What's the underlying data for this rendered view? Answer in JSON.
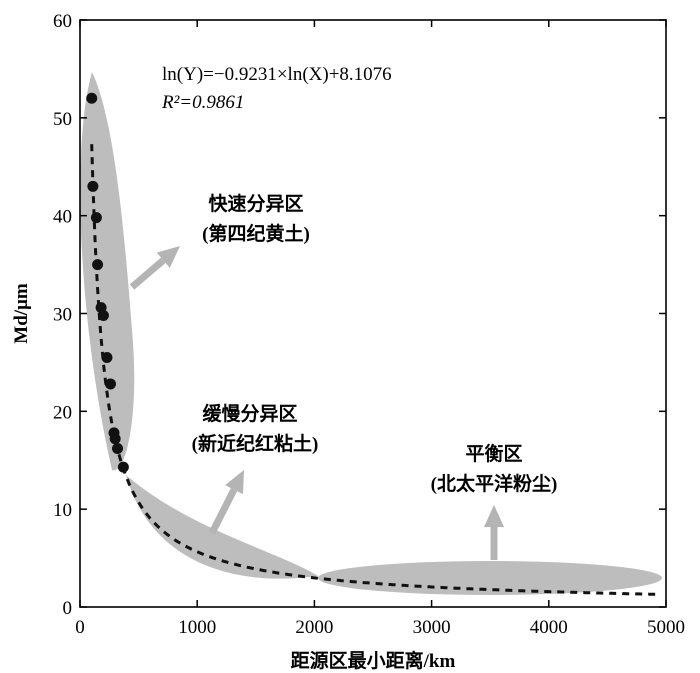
{
  "chart_data": {
    "type": "scatter",
    "xlabel": "距源区最小距离/km",
    "ylabel": "Md/μm",
    "xlim": [
      0,
      5000
    ],
    "ylim": [
      0,
      60
    ],
    "xticks": [
      0,
      1000,
      2000,
      3000,
      4000,
      5000
    ],
    "yticks": [
      0,
      10,
      20,
      30,
      40,
      50,
      60
    ],
    "grid": false,
    "points": [
      {
        "x": 100,
        "y": 52
      },
      {
        "x": 110,
        "y": 43
      },
      {
        "x": 140,
        "y": 39.8
      },
      {
        "x": 150,
        "y": 35
      },
      {
        "x": 180,
        "y": 30.6
      },
      {
        "x": 200,
        "y": 29.8
      },
      {
        "x": 230,
        "y": 25.5
      },
      {
        "x": 260,
        "y": 22.8
      },
      {
        "x": 290,
        "y": 17.8
      },
      {
        "x": 300,
        "y": 17.2
      },
      {
        "x": 320,
        "y": 16.2
      },
      {
        "x": 370,
        "y": 14.3
      }
    ],
    "fit": {
      "equation_label": "ln(Y)=−0.9231×ln(X)+8.1076",
      "r2_label": "R²=0.9861",
      "slope": -0.9231,
      "intercept": 8.1076
    },
    "regions": [
      {
        "line1": "快速分异区",
        "line2": "(第四纪黄土)"
      },
      {
        "line1": "缓慢分异区",
        "line2": "(新近纪红粘土)"
      },
      {
        "line1": "平衡区",
        "line2": "(北太平洋粉尘)"
      }
    ],
    "colors": {
      "region_fill": "#bdbdbd",
      "arrow": "#b4b4b4",
      "points": "#111111"
    }
  }
}
